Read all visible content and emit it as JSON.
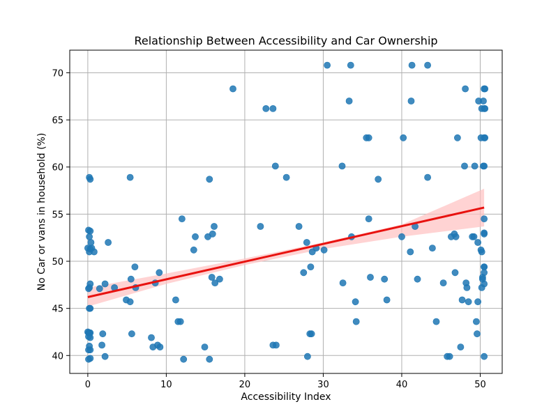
{
  "chart_data": {
    "type": "scatter",
    "title": "Relationship Between Accessibility and Car Ownership",
    "xlabel": "Accessibility Index",
    "ylabel": "No Car or vans in household (%)",
    "xlim": [
      -2.3,
      52.8
    ],
    "ylim": [
      38.1,
      72.4
    ],
    "xticks": [
      0,
      10,
      20,
      30,
      40,
      50
    ],
    "yticks": [
      40,
      45,
      50,
      55,
      60,
      65,
      70
    ],
    "grid": true,
    "colors": {
      "points": "#1f77b4",
      "regression": "#e8120f",
      "confidence_band": "#ffc0c0"
    },
    "regression": {
      "x": [
        0,
        50.5
      ],
      "y": [
        46.2,
        55.7
      ]
    },
    "confidence_band": {
      "x": [
        0,
        10,
        20,
        30,
        40,
        50.5
      ],
      "lower": [
        45.2,
        47.6,
        49.6,
        51.3,
        52.6,
        53.7
      ],
      "upper": [
        47.2,
        48.7,
        50.3,
        52.0,
        53.9,
        57.7
      ]
    },
    "points": [
      [
        0.0,
        42.5
      ],
      [
        0.1,
        42.4
      ],
      [
        0.2,
        42.4
      ],
      [
        0.3,
        42.4
      ],
      [
        0.1,
        42.0
      ],
      [
        0.3,
        41.9
      ],
      [
        0.2,
        41.0
      ],
      [
        0.3,
        40.6
      ],
      [
        0.1,
        40.6
      ],
      [
        0.3,
        39.7
      ],
      [
        0.1,
        39.6
      ],
      [
        0.2,
        45.0
      ],
      [
        0.3,
        45.0
      ],
      [
        0.1,
        47.1
      ],
      [
        0.2,
        47.2
      ],
      [
        0.3,
        47.6
      ],
      [
        0.0,
        51.4
      ],
      [
        0.2,
        51.0
      ],
      [
        0.3,
        51.3
      ],
      [
        0.5,
        51.4
      ],
      [
        0.4,
        52.0
      ],
      [
        0.2,
        52.6
      ],
      [
        0.1,
        53.3
      ],
      [
        0.3,
        53.2
      ],
      [
        0.2,
        58.9
      ],
      [
        0.3,
        58.7
      ],
      [
        0.8,
        51.0
      ],
      [
        1.5,
        47.1
      ],
      [
        1.8,
        41.1
      ],
      [
        1.9,
        42.3
      ],
      [
        2.2,
        39.9
      ],
      [
        2.2,
        47.6
      ],
      [
        2.6,
        52.0
      ],
      [
        3.4,
        47.2
      ],
      [
        4.9,
        45.9
      ],
      [
        5.4,
        45.7
      ],
      [
        5.4,
        58.9
      ],
      [
        5.5,
        48.1
      ],
      [
        5.6,
        42.3
      ],
      [
        6.0,
        49.4
      ],
      [
        6.1,
        47.2
      ],
      [
        8.1,
        41.9
      ],
      [
        8.3,
        40.9
      ],
      [
        8.6,
        47.7
      ],
      [
        8.9,
        41.1
      ],
      [
        9.1,
        48.8
      ],
      [
        9.2,
        40.9
      ],
      [
        11.2,
        45.9
      ],
      [
        11.5,
        43.6
      ],
      [
        11.8,
        43.6
      ],
      [
        12.0,
        54.5
      ],
      [
        12.2,
        39.6
      ],
      [
        13.5,
        51.2
      ],
      [
        13.7,
        52.6
      ],
      [
        14.9,
        40.9
      ],
      [
        15.3,
        52.6
      ],
      [
        15.5,
        58.7
      ],
      [
        15.5,
        39.6
      ],
      [
        15.8,
        48.3
      ],
      [
        15.9,
        52.9
      ],
      [
        16.1,
        53.7
      ],
      [
        16.2,
        47.7
      ],
      [
        16.8,
        48.1
      ],
      [
        18.5,
        68.3
      ],
      [
        22.0,
        53.7
      ],
      [
        22.7,
        66.2
      ],
      [
        23.6,
        66.2
      ],
      [
        23.6,
        41.1
      ],
      [
        23.9,
        60.1
      ],
      [
        24.0,
        41.1
      ],
      [
        25.3,
        58.9
      ],
      [
        26.9,
        53.7
      ],
      [
        27.5,
        48.8
      ],
      [
        27.9,
        52.0
      ],
      [
        28.0,
        39.9
      ],
      [
        28.3,
        42.3
      ],
      [
        28.4,
        49.4
      ],
      [
        28.5,
        42.3
      ],
      [
        28.6,
        51.0
      ],
      [
        29.1,
        51.4
      ],
      [
        30.1,
        51.2
      ],
      [
        30.5,
        70.8
      ],
      [
        32.4,
        60.1
      ],
      [
        32.5,
        47.7
      ],
      [
        33.3,
        67.0
      ],
      [
        33.5,
        70.8
      ],
      [
        33.6,
        52.6
      ],
      [
        34.1,
        45.7
      ],
      [
        34.2,
        43.6
      ],
      [
        35.5,
        63.1
      ],
      [
        35.8,
        63.1
      ],
      [
        35.8,
        54.5
      ],
      [
        36.0,
        48.3
      ],
      [
        37.0,
        58.7
      ],
      [
        37.8,
        48.1
      ],
      [
        38.1,
        45.9
      ],
      [
        40.0,
        52.6
      ],
      [
        40.2,
        63.1
      ],
      [
        41.1,
        51.0
      ],
      [
        41.2,
        67.0
      ],
      [
        41.3,
        70.8
      ],
      [
        41.7,
        53.7
      ],
      [
        42.0,
        48.1
      ],
      [
        43.3,
        70.8
      ],
      [
        43.3,
        58.9
      ],
      [
        43.9,
        51.4
      ],
      [
        44.4,
        43.6
      ],
      [
        45.3,
        47.7
      ],
      [
        45.8,
        39.9
      ],
      [
        46.1,
        39.9
      ],
      [
        46.3,
        52.6
      ],
      [
        46.7,
        52.9
      ],
      [
        46.8,
        48.8
      ],
      [
        46.9,
        52.6
      ],
      [
        47.1,
        63.1
      ],
      [
        47.5,
        40.9
      ],
      [
        47.7,
        45.9
      ],
      [
        48.0,
        60.1
      ],
      [
        48.1,
        68.3
      ],
      [
        48.2,
        47.7
      ],
      [
        48.3,
        47.2
      ],
      [
        48.5,
        45.7
      ],
      [
        49.0,
        52.6
      ],
      [
        49.2,
        52.6
      ],
      [
        49.3,
        60.1
      ],
      [
        49.5,
        43.6
      ],
      [
        49.6,
        42.3
      ],
      [
        49.7,
        45.7
      ],
      [
        49.7,
        52.0
      ],
      [
        49.8,
        67.0
      ],
      [
        50.1,
        63.1
      ],
      [
        50.1,
        51.2
      ],
      [
        50.2,
        47.2
      ],
      [
        50.2,
        51.0
      ],
      [
        50.2,
        66.2
      ],
      [
        50.3,
        48.3
      ],
      [
        50.3,
        48.1
      ],
      [
        50.4,
        67.0
      ],
      [
        50.4,
        60.1
      ],
      [
        50.5,
        53.0
      ],
      [
        50.5,
        47.6
      ],
      [
        50.5,
        49.4
      ],
      [
        50.5,
        54.5
      ],
      [
        50.5,
        63.1
      ],
      [
        50.5,
        66.2
      ],
      [
        50.5,
        68.3
      ],
      [
        50.5,
        60.1
      ],
      [
        50.5,
        48.8
      ],
      [
        50.5,
        39.9
      ],
      [
        50.5,
        49.4
      ],
      [
        50.6,
        63.1
      ],
      [
        50.6,
        66.2
      ],
      [
        50.6,
        68.3
      ],
      [
        50.5,
        52.9
      ]
    ]
  }
}
